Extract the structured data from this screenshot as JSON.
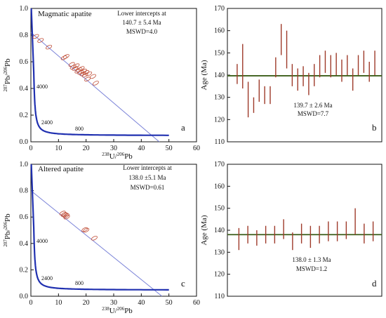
{
  "chart_data": [
    {
      "type": "scatter",
      "panel": "a",
      "title": "Magmatic apatite",
      "annotation": [
        "Lower intercepts at",
        "140.7 ± 5.4 Ma",
        "MSWD=4.0"
      ],
      "xlabel": "238U/206Pb",
      "ylabel": "207Pb/206Pb",
      "xlim": [
        0,
        60
      ],
      "ylim": [
        0,
        1.0
      ],
      "xticks": [
        "0",
        "10",
        "20",
        "30",
        "40",
        "50",
        "60"
      ],
      "yticks": [
        "0.0",
        "0.2",
        "0.4",
        "0.6",
        "0.8",
        "1.0"
      ],
      "concordia_labels": [
        "4000",
        "2400",
        "800"
      ],
      "regression": {
        "x": [
          0,
          46.5
        ],
        "y": [
          0.82,
          0.0
        ]
      },
      "points": [
        {
          "x": 1.8,
          "y": 0.79
        },
        {
          "x": 3.5,
          "y": 0.76
        },
        {
          "x": 6.5,
          "y": 0.71
        },
        {
          "x": 12.0,
          "y": 0.63
        },
        {
          "x": 12.8,
          "y": 0.64
        },
        {
          "x": 14.8,
          "y": 0.58
        },
        {
          "x": 15.3,
          "y": 0.56
        },
        {
          "x": 16.0,
          "y": 0.55
        },
        {
          "x": 16.5,
          "y": 0.57
        },
        {
          "x": 17.0,
          "y": 0.53
        },
        {
          "x": 17.5,
          "y": 0.54
        },
        {
          "x": 18.0,
          "y": 0.52
        },
        {
          "x": 18.3,
          "y": 0.55
        },
        {
          "x": 18.8,
          "y": 0.51
        },
        {
          "x": 19.2,
          "y": 0.53
        },
        {
          "x": 19.6,
          "y": 0.5
        },
        {
          "x": 20.0,
          "y": 0.52
        },
        {
          "x": 21.0,
          "y": 0.51
        },
        {
          "x": 22.5,
          "y": 0.49
        },
        {
          "x": 20.5,
          "y": 0.47
        },
        {
          "x": 23.5,
          "y": 0.44
        }
      ]
    },
    {
      "type": "bar",
      "panel": "b",
      "ylabel": "Age (Ma)",
      "ylim": [
        110,
        170
      ],
      "yticks": [
        "110",
        "120",
        "130",
        "140",
        "150",
        "160",
        "170"
      ],
      "mean": 139.7,
      "annotation": [
        "139.7 ± 2.6 Ma",
        "MSWD=7.7"
      ],
      "bars": [
        {
          "low": 136,
          "high": 145
        },
        {
          "low": 134,
          "high": 154
        },
        {
          "low": 121,
          "high": 137
        },
        {
          "low": 123,
          "high": 130
        },
        {
          "low": 128,
          "high": 138
        },
        {
          "low": 127,
          "high": 135
        },
        {
          "low": 127,
          "high": 135
        },
        {
          "low": 139,
          "high": 148
        },
        {
          "low": 149,
          "high": 163
        },
        {
          "low": 143,
          "high": 160
        },
        {
          "low": 135,
          "high": 145
        },
        {
          "low": 133,
          "high": 143
        },
        {
          "low": 135,
          "high": 144
        },
        {
          "low": 131,
          "high": 141
        },
        {
          "low": 135,
          "high": 145
        },
        {
          "low": 139,
          "high": 149
        },
        {
          "low": 141,
          "high": 151
        },
        {
          "low": 139,
          "high": 149
        },
        {
          "low": 140,
          "high": 150
        },
        {
          "low": 137,
          "high": 147
        },
        {
          "low": 140,
          "high": 149
        },
        {
          "low": 133,
          "high": 143
        },
        {
          "low": 140,
          "high": 149
        },
        {
          "low": 141,
          "high": 151
        },
        {
          "low": 137,
          "high": 146
        },
        {
          "low": 140,
          "high": 151
        }
      ]
    },
    {
      "type": "scatter",
      "panel": "c",
      "title": "Altered apatite",
      "annotation": [
        "Lower intercepts at",
        "138.0 ±5.1 Ma",
        "MSWD=0.61"
      ],
      "xlabel": "238U/206Pb",
      "ylabel": "207Pb/206Pb",
      "xlim": [
        0,
        60
      ],
      "ylim": [
        0,
        1.0
      ],
      "xticks": [
        "0",
        "10",
        "20",
        "30",
        "40",
        "50",
        "60"
      ],
      "yticks": [
        "0.0",
        "0.2",
        "0.4",
        "0.6",
        "0.8",
        "1.0"
      ],
      "concordia_labels": [
        "4000",
        "2400",
        "800"
      ],
      "regression": {
        "x": [
          0,
          47.5
        ],
        "y": [
          0.8,
          0.0
        ]
      },
      "points": [
        {
          "x": 11.5,
          "y": 0.63
        },
        {
          "x": 12.0,
          "y": 0.62
        },
        {
          "x": 12.4,
          "y": 0.615
        },
        {
          "x": 12.8,
          "y": 0.61
        },
        {
          "x": 13.0,
          "y": 0.6
        },
        {
          "x": 19.5,
          "y": 0.505
        },
        {
          "x": 20.0,
          "y": 0.5
        },
        {
          "x": 23.0,
          "y": 0.44
        }
      ]
    },
    {
      "type": "bar",
      "panel": "d",
      "ylabel": "Age (Ma)",
      "ylim": [
        110,
        170
      ],
      "yticks": [
        "110",
        "120",
        "130",
        "140",
        "150",
        "160",
        "170"
      ],
      "mean": 138.0,
      "annotation": [
        "138.0 ± 1.3 Ma",
        "MSWD=1.2"
      ],
      "bars": [
        {
          "low": 131,
          "high": 141
        },
        {
          "low": 134,
          "high": 142
        },
        {
          "low": 133,
          "high": 140
        },
        {
          "low": 134,
          "high": 142
        },
        {
          "low": 134,
          "high": 142
        },
        {
          "low": 136,
          "high": 145
        },
        {
          "low": 131,
          "high": 139
        },
        {
          "low": 134,
          "high": 143
        },
        {
          "low": 132,
          "high": 142
        },
        {
          "low": 134,
          "high": 142
        },
        {
          "low": 135,
          "high": 144
        },
        {
          "low": 135,
          "high": 144
        },
        {
          "low": 136,
          "high": 144
        },
        {
          "low": 138,
          "high": 150
        },
        {
          "low": 134,
          "high": 143
        },
        {
          "low": 135,
          "high": 144
        }
      ]
    }
  ],
  "colors": {
    "axis": "#111111",
    "concordia": "#2030b0",
    "regression": "#7a82d8",
    "ellipse": "#c0503a",
    "errorbar": "#9e3a2a",
    "mean_line": "#3c5e1a"
  }
}
